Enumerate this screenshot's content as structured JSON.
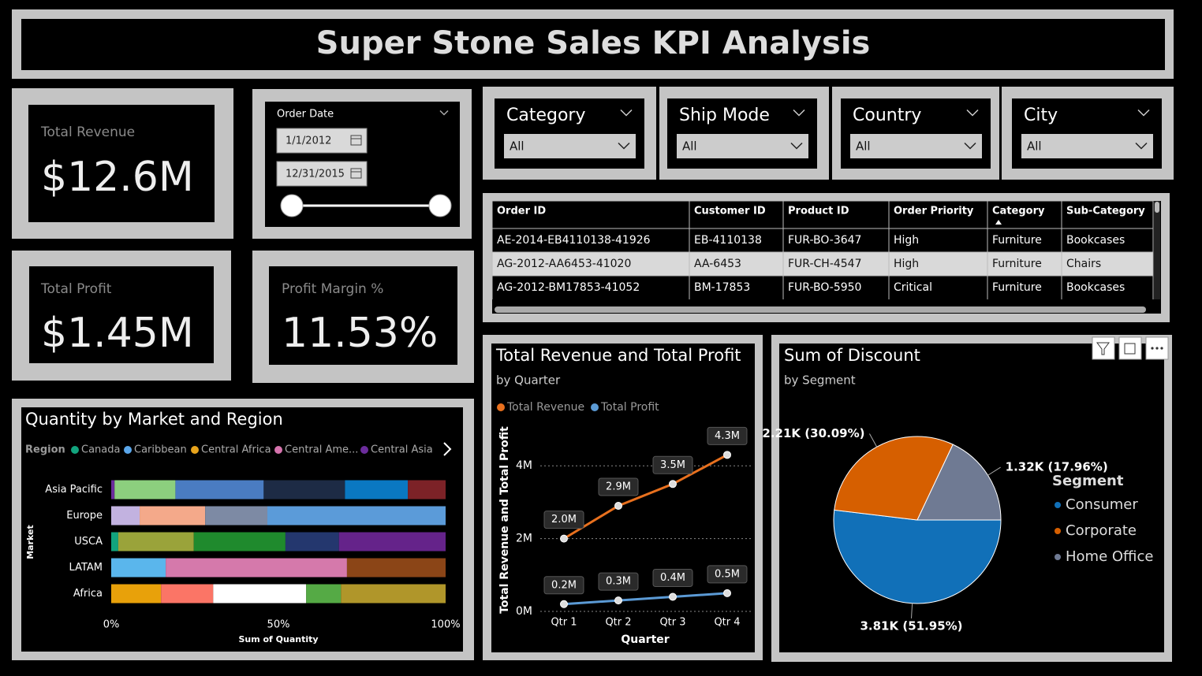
{
  "header": {
    "title": "Super Stone Sales KPI Analysis"
  },
  "kpis": [
    {
      "label": "Total Revenue",
      "value": "$12.6M"
    },
    {
      "label": "Total Profit",
      "value": "$1.45M"
    },
    {
      "label": "Profit Margin %",
      "value": "11.53%"
    }
  ],
  "date_slicer": {
    "label": "Order Date",
    "start": "1/1/2012",
    "end": "12/31/2015"
  },
  "slicers": [
    {
      "label": "Category",
      "value": "All"
    },
    {
      "label": "Ship Mode",
      "value": "All"
    },
    {
      "label": "Country",
      "value": "All"
    },
    {
      "label": "City",
      "value": "All"
    }
  ],
  "table": {
    "columns": [
      "Order ID",
      "Customer ID",
      "Product ID",
      "Order Priority",
      "Category",
      "Sub-Category"
    ],
    "rows": [
      [
        "AE-2014-EB4110138-41926",
        "EB-4110138",
        "FUR-BO-3647",
        "High",
        "Furniture",
        "Bookcases"
      ],
      [
        "AG-2012-AA6453-41020",
        "AA-6453",
        "FUR-CH-4547",
        "High",
        "Furniture",
        "Chairs"
      ],
      [
        "AG-2012-BM17853-41052",
        "BM-17853",
        "FUR-BO-5950",
        "Critical",
        "Furniture",
        "Bookcases"
      ]
    ]
  },
  "chart_data": [
    {
      "type": "bar",
      "orientation": "horizontal",
      "stacking": "percent",
      "title": "Quantity by Market and Region",
      "x_label": "Sum of Quantity",
      "y_label": "Market",
      "legend_title": "Region",
      "legend": [
        {
          "name": "Canada",
          "color": "#12a47e"
        },
        {
          "name": "Caribbean",
          "color": "#5aa6ea"
        },
        {
          "name": "Central Africa",
          "color": "#e8a41c"
        },
        {
          "name": "Central Ame...",
          "color": "#d673ad"
        },
        {
          "name": "Central Asia",
          "color": "#6b2c9c"
        }
      ],
      "categories": [
        "Asia Pacific",
        "Europe",
        "USCA",
        "LATAM",
        "Africa"
      ],
      "segments": [
        [
          {
            "color": "#6b2c9c",
            "value": 1
          },
          {
            "color": "#8ccf7e",
            "value": 18.2
          },
          {
            "color": "#4a7cc2",
            "value": 26.4
          },
          {
            "color": "#1d2b45",
            "value": 24.3
          },
          {
            "color": "#0a78c2",
            "value": 18.8
          },
          {
            "color": "#7c2227",
            "value": 11.3
          }
        ],
        [
          {
            "color": "#c2b2e0",
            "value": 8.5
          },
          {
            "color": "#f4a98a",
            "value": 19.6
          },
          {
            "color": "#7d8aa4",
            "value": 18.6
          },
          {
            "color": "#5b9bd9",
            "value": 53.3
          }
        ],
        [
          {
            "color": "#12a47e",
            "value": 2.1
          },
          {
            "color": "#9aa33a",
            "value": 22.6
          },
          {
            "color": "#1f8a2d",
            "value": 27.4
          },
          {
            "color": "#24376e",
            "value": 16.0
          },
          {
            "color": "#65238a",
            "value": 31.9
          }
        ],
        [
          {
            "color": "#5ab6ec",
            "value": 16.3
          },
          {
            "color": "#d579ab",
            "value": 54.2
          },
          {
            "color": "#8b4517",
            "value": 29.5
          }
        ],
        [
          {
            "color": "#e8a10a",
            "value": 14.9
          },
          {
            "color": "#fb7566",
            "value": 15.6
          },
          {
            "color": "#ffffff",
            "value": 27.8
          },
          {
            "color": "#55aa45",
            "value": 10.4
          },
          {
            "color": "#b0962a",
            "value": 31.3
          }
        ]
      ],
      "xlim": [
        0,
        100
      ],
      "xticks": [
        {
          "value": 0,
          "label": "0%"
        },
        {
          "value": 50,
          "label": "50%"
        },
        {
          "value": 100,
          "label": "100%"
        }
      ]
    },
    {
      "type": "line",
      "title": "Total Revenue and Total Profit",
      "subtitle": "by Quarter",
      "x_label": "Quarter",
      "y_label": "Total Revenue and Total Profit",
      "categories": [
        "Qtr 1",
        "Qtr 2",
        "Qtr 3",
        "Qtr 4"
      ],
      "series": [
        {
          "name": "Total Revenue",
          "color": "#e8701e",
          "values": [
            2.0,
            2.9,
            3.5,
            4.3
          ],
          "value_labels": [
            "2.0M",
            "2.9M",
            "3.5M",
            "4.3M"
          ]
        },
        {
          "name": "Total Profit",
          "color": "#5b9ad5",
          "values": [
            0.2,
            0.3,
            0.4,
            0.5
          ],
          "value_labels": [
            "0.2M",
            "0.3M",
            "0.4M",
            "0.5M"
          ]
        }
      ],
      "ylim": [
        0,
        5
      ],
      "yticks": [
        {
          "value": 0,
          "label": "0M"
        },
        {
          "value": 2,
          "label": "2M"
        },
        {
          "value": 4,
          "label": "4M"
        }
      ],
      "grid": true
    },
    {
      "type": "pie",
      "title": "Sum of Discount",
      "subtitle": "by Segment",
      "legend_title": "Segment",
      "categories": [
        "Consumer",
        "Corporate",
        "Home Office"
      ],
      "values": [
        3810,
        2210,
        1320
      ],
      "value_labels": [
        "3.81K (51.95%)",
        "2.21K (30.09%)",
        "1.32K (17.96%)"
      ],
      "colors": [
        "#1170b8",
        "#d65f00",
        "#6f7a93"
      ]
    }
  ]
}
